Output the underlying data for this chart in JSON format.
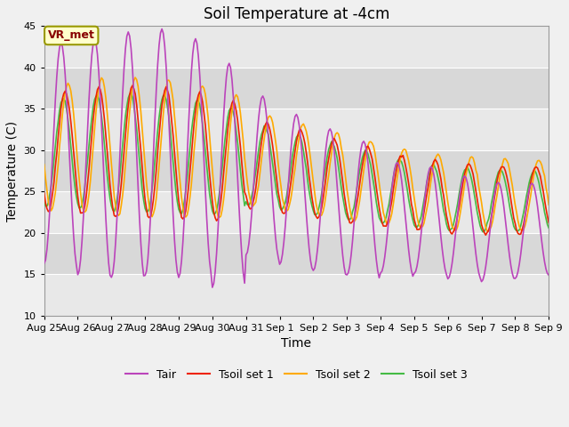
{
  "title": "Soil Temperature at -4cm",
  "xlabel": "Time",
  "ylabel": "Temperature (C)",
  "ylim": [
    10,
    45
  ],
  "colors": {
    "Tair": "#bb44bb",
    "Tsoil1": "#ee2200",
    "Tsoil2": "#ffaa00",
    "Tsoil3": "#44bb44"
  },
  "legend_labels": [
    "Tair",
    "Tsoil set 1",
    "Tsoil set 2",
    "Tsoil set 3"
  ],
  "x_tick_labels": [
    "Aug 25",
    "Aug 26",
    "Aug 27",
    "Aug 28",
    "Aug 29",
    "Aug 30",
    "Aug 31",
    "Sep 1",
    "Sep 2",
    "Sep 3",
    "Sep 4",
    "Sep 5",
    "Sep 6",
    "Sep 7",
    "Sep 8",
    "Sep 9"
  ],
  "bg_color": "#f0f0f0",
  "band_colors": [
    "#e8e8e8",
    "#d8d8d8"
  ],
  "vr_met_text": "VR_met",
  "vr_met_fg": "#880000",
  "vr_met_bg": "#ffffcc",
  "vr_met_border": "#999900",
  "title_fontsize": 12,
  "axis_fontsize": 10,
  "tick_fontsize": 8,
  "legend_fontsize": 9,
  "linewidth": 1.2
}
